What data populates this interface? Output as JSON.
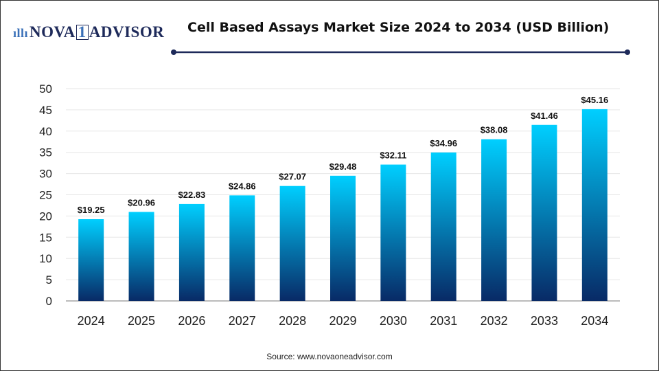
{
  "logo": {
    "text_main": "NOVA",
    "text_one": "1",
    "text_tail": "ADVISOR"
  },
  "chart_data": {
    "type": "bar",
    "title": "Cell Based Assays Market Size 2024 to 2034 (USD Billion)",
    "categories": [
      "2024",
      "2025",
      "2026",
      "2027",
      "2028",
      "2029",
      "2030",
      "2031",
      "2032",
      "2033",
      "2034"
    ],
    "values": [
      19.25,
      20.96,
      22.83,
      24.86,
      27.07,
      29.48,
      32.11,
      34.96,
      38.08,
      41.46,
      45.16
    ],
    "data_labels": [
      "$19.25",
      "$20.96",
      "$22.83",
      "$24.86",
      "$27.07",
      "$29.48",
      "$32.11",
      "$34.96",
      "$38.08",
      "$41.46",
      "$45.16"
    ],
    "yticks": [
      0,
      5,
      10,
      15,
      20,
      25,
      30,
      35,
      40,
      45,
      50
    ],
    "ylim": [
      0,
      50
    ],
    "xlabel": "",
    "ylabel": "",
    "grid": true,
    "colors": {
      "bar_top": "#00cfff",
      "bar_bottom": "#082a66",
      "accent": "#1e2a5a"
    }
  },
  "source": "Source: www.novaoneadvisor.com"
}
